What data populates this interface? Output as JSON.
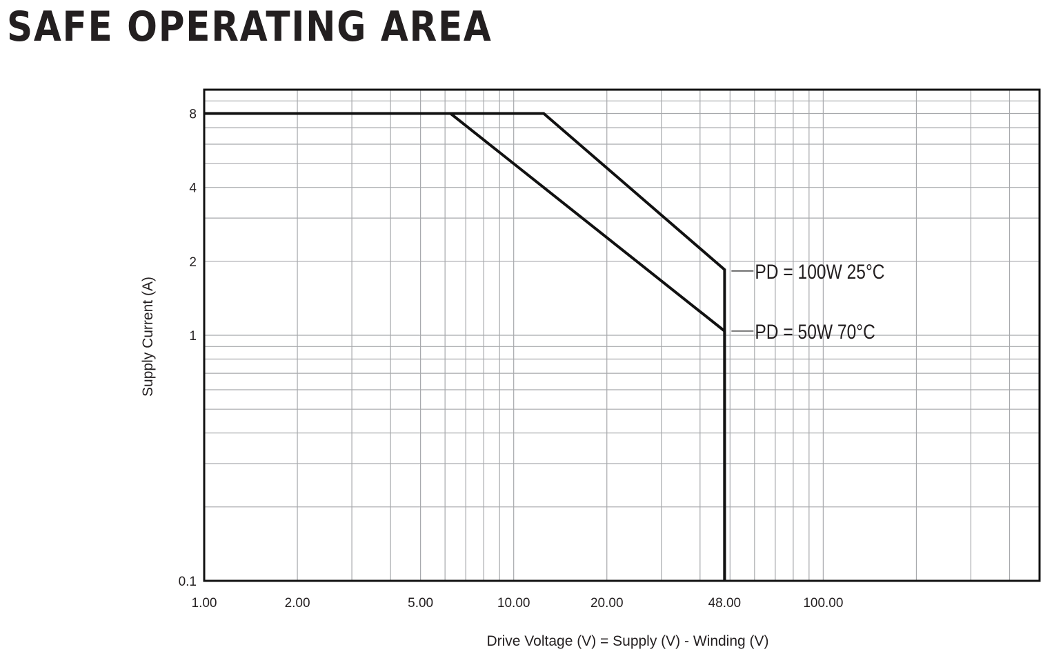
{
  "title": "SAFE OPERATING AREA",
  "colors": {
    "grid": "#a7a9ac",
    "curve": "#111111",
    "frame": "#111111",
    "text": "#231f20"
  },
  "chart_data": {
    "type": "line",
    "title": "SAFE OPERATING AREA",
    "xlabel": "Drive Voltage (V) = Supply (V) - Winding (V)",
    "ylabel": "Supply Current (A)",
    "x_scale": "log",
    "y_scale": "log",
    "xlim": [
      1,
      500
    ],
    "ylim": [
      0.1,
      10
    ],
    "grid": true,
    "x_ticks": [
      {
        "value": 1,
        "label": "1.00"
      },
      {
        "value": 2,
        "label": "2.00"
      },
      {
        "value": 5,
        "label": "5.00"
      },
      {
        "value": 10,
        "label": "10.00"
      },
      {
        "value": 20,
        "label": "20.00"
      },
      {
        "value": 48,
        "label": "48.00"
      },
      {
        "value": 100,
        "label": "100.00"
      }
    ],
    "y_ticks": [
      {
        "value": 8,
        "label": "8"
      },
      {
        "value": 4,
        "label": "4"
      },
      {
        "value": 2,
        "label": "2"
      },
      {
        "value": 1,
        "label": "1"
      },
      {
        "value": 0.1,
        "label": "0.1"
      }
    ],
    "series": [
      {
        "name": "PD = 100W  25°C",
        "points": [
          [
            1,
            8
          ],
          [
            12.5,
            8
          ],
          [
            48,
            1.85
          ],
          [
            48,
            0.1
          ]
        ]
      },
      {
        "name": "PD = 50W  70°C",
        "points": [
          [
            1,
            8
          ],
          [
            6.25,
            8
          ],
          [
            48,
            1.04
          ],
          [
            48,
            0.1
          ]
        ]
      }
    ]
  }
}
